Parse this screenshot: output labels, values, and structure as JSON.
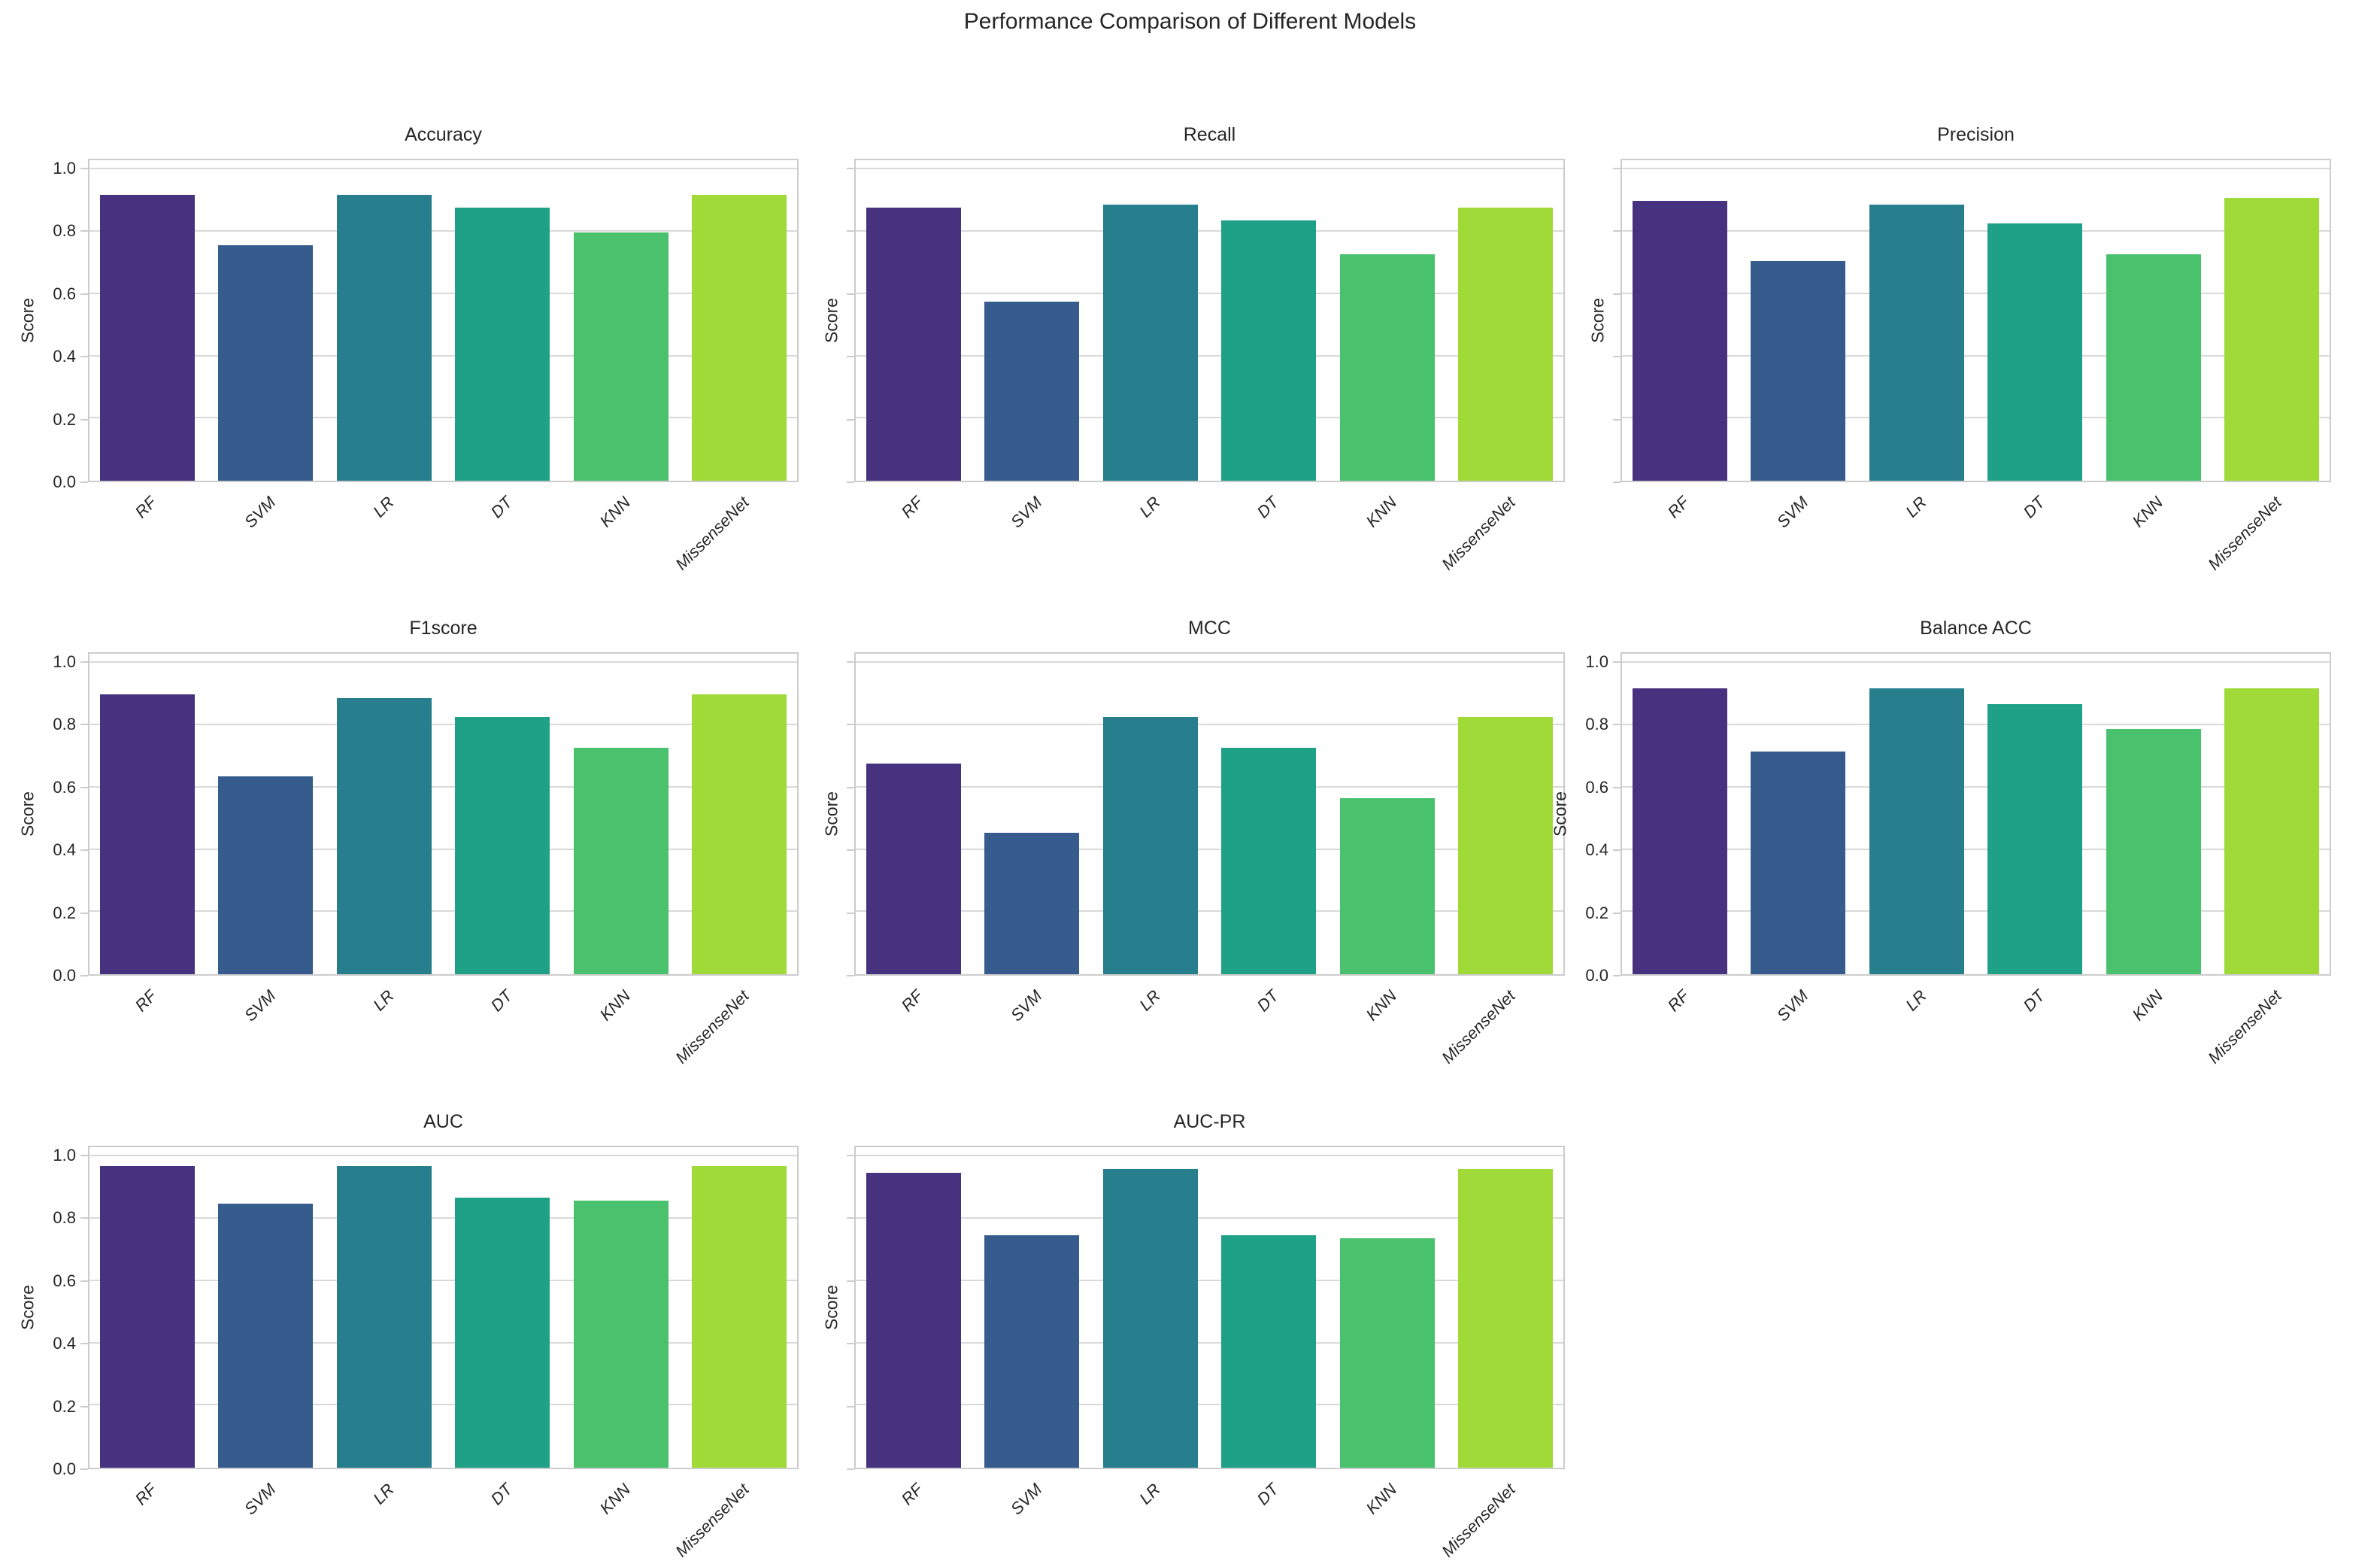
{
  "figure": {
    "title": "Performance Comparison of Different Models",
    "background": "#ffffff",
    "text_color": "#262626",
    "grid_color": "#d9d9d9",
    "spine_color": "#cccccc"
  },
  "layout": {
    "rows": 3,
    "cols": 3,
    "filled_cells": 8,
    "grid": true,
    "legend": false
  },
  "categories": [
    "RF",
    "SVM",
    "LR",
    "DT",
    "KNN",
    "MissenseNet"
  ],
  "palette": [
    "#46327e",
    "#365c8d",
    "#277f8e",
    "#1fa187",
    "#4ac16d",
    "#a0da39"
  ],
  "ylabel": "Score",
  "ytick_labels": [
    "0.0",
    "0.2",
    "0.4",
    "0.6",
    "0.8",
    "1.0"
  ],
  "yticks": [
    0.0,
    0.2,
    0.4,
    0.6,
    0.8,
    1.0
  ],
  "chart_data": [
    {
      "type": "bar",
      "title": "Accuracy",
      "categories": [
        "RF",
        "SVM",
        "LR",
        "DT",
        "KNN",
        "MissenseNet"
      ],
      "values": [
        0.91,
        0.75,
        0.91,
        0.87,
        0.79,
        0.91
      ],
      "xlabel": "",
      "ylabel": "Score",
      "ylim": [
        0,
        1.03
      ],
      "yticks_visible": true
    },
    {
      "type": "bar",
      "title": "Recall",
      "categories": [
        "RF",
        "SVM",
        "LR",
        "DT",
        "KNN",
        "MissenseNet"
      ],
      "values": [
        0.87,
        0.57,
        0.88,
        0.83,
        0.72,
        0.87
      ],
      "xlabel": "",
      "ylabel": "Score",
      "ylim": [
        0,
        1.03
      ],
      "yticks_visible": false
    },
    {
      "type": "bar",
      "title": "Precision",
      "categories": [
        "RF",
        "SVM",
        "LR",
        "DT",
        "KNN",
        "MissenseNet"
      ],
      "values": [
        0.89,
        0.7,
        0.88,
        0.82,
        0.72,
        0.9
      ],
      "xlabel": "",
      "ylabel": "Score",
      "ylim": [
        0,
        1.03
      ],
      "yticks_visible": false
    },
    {
      "type": "bar",
      "title": "F1score",
      "categories": [
        "RF",
        "SVM",
        "LR",
        "DT",
        "KNN",
        "MissenseNet"
      ],
      "values": [
        0.89,
        0.63,
        0.88,
        0.82,
        0.72,
        0.89
      ],
      "xlabel": "",
      "ylabel": "Score",
      "ylim": [
        0,
        1.03
      ],
      "yticks_visible": true
    },
    {
      "type": "bar",
      "title": "MCC",
      "categories": [
        "RF",
        "SVM",
        "LR",
        "DT",
        "KNN",
        "MissenseNet"
      ],
      "values": [
        0.67,
        0.45,
        0.82,
        0.72,
        0.56,
        0.82
      ],
      "xlabel": "",
      "ylabel": "Score",
      "ylim": [
        0,
        1.03
      ],
      "yticks_visible": false
    },
    {
      "type": "bar",
      "title": "Balance ACC",
      "categories": [
        "RF",
        "SVM",
        "LR",
        "DT",
        "KNN",
        "MissenseNet"
      ],
      "values": [
        0.91,
        0.71,
        0.91,
        0.86,
        0.78,
        0.91
      ],
      "xlabel": "",
      "ylabel": "Score",
      "ylim": [
        0,
        1.03
      ],
      "yticks_visible": true
    },
    {
      "type": "bar",
      "title": "AUC",
      "categories": [
        "RF",
        "SVM",
        "LR",
        "DT",
        "KNN",
        "MissenseNet"
      ],
      "values": [
        0.96,
        0.84,
        0.96,
        0.86,
        0.85,
        0.96
      ],
      "xlabel": "",
      "ylabel": "Score",
      "ylim": [
        0,
        1.03
      ],
      "yticks_visible": true
    },
    {
      "type": "bar",
      "title": "AUC-PR",
      "categories": [
        "RF",
        "SVM",
        "LR",
        "DT",
        "KNN",
        "MissenseNet"
      ],
      "values": [
        0.94,
        0.74,
        0.95,
        0.74,
        0.73,
        0.95
      ],
      "xlabel": "",
      "ylabel": "Score",
      "ylim": [
        0,
        1.03
      ],
      "yticks_visible": false
    }
  ]
}
